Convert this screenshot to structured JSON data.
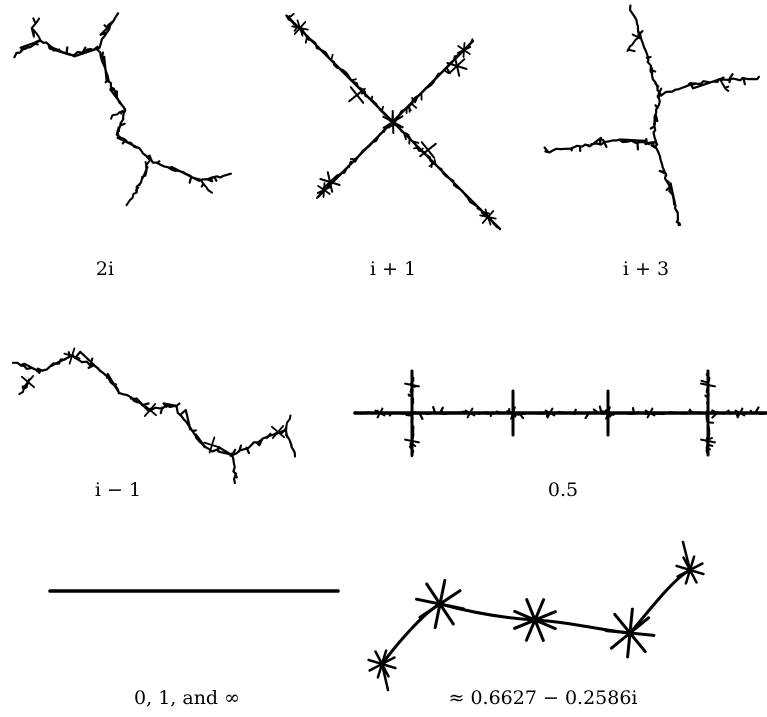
{
  "figures": [
    {
      "id": "julia-2i",
      "caption": "2i"
    },
    {
      "id": "julia-i-plus-1",
      "caption": "i + 1"
    },
    {
      "id": "julia-i-plus-3",
      "caption": "i + 3"
    },
    {
      "id": "julia-i-minus-1",
      "caption": "i − 1"
    },
    {
      "id": "julia-0-5",
      "caption": "0.5"
    },
    {
      "id": "julia-0-1-infinity",
      "caption": "0, 1, and ∞"
    },
    {
      "id": "julia-approx",
      "caption": "≈ 0.6627 − 0.2586i"
    }
  ]
}
